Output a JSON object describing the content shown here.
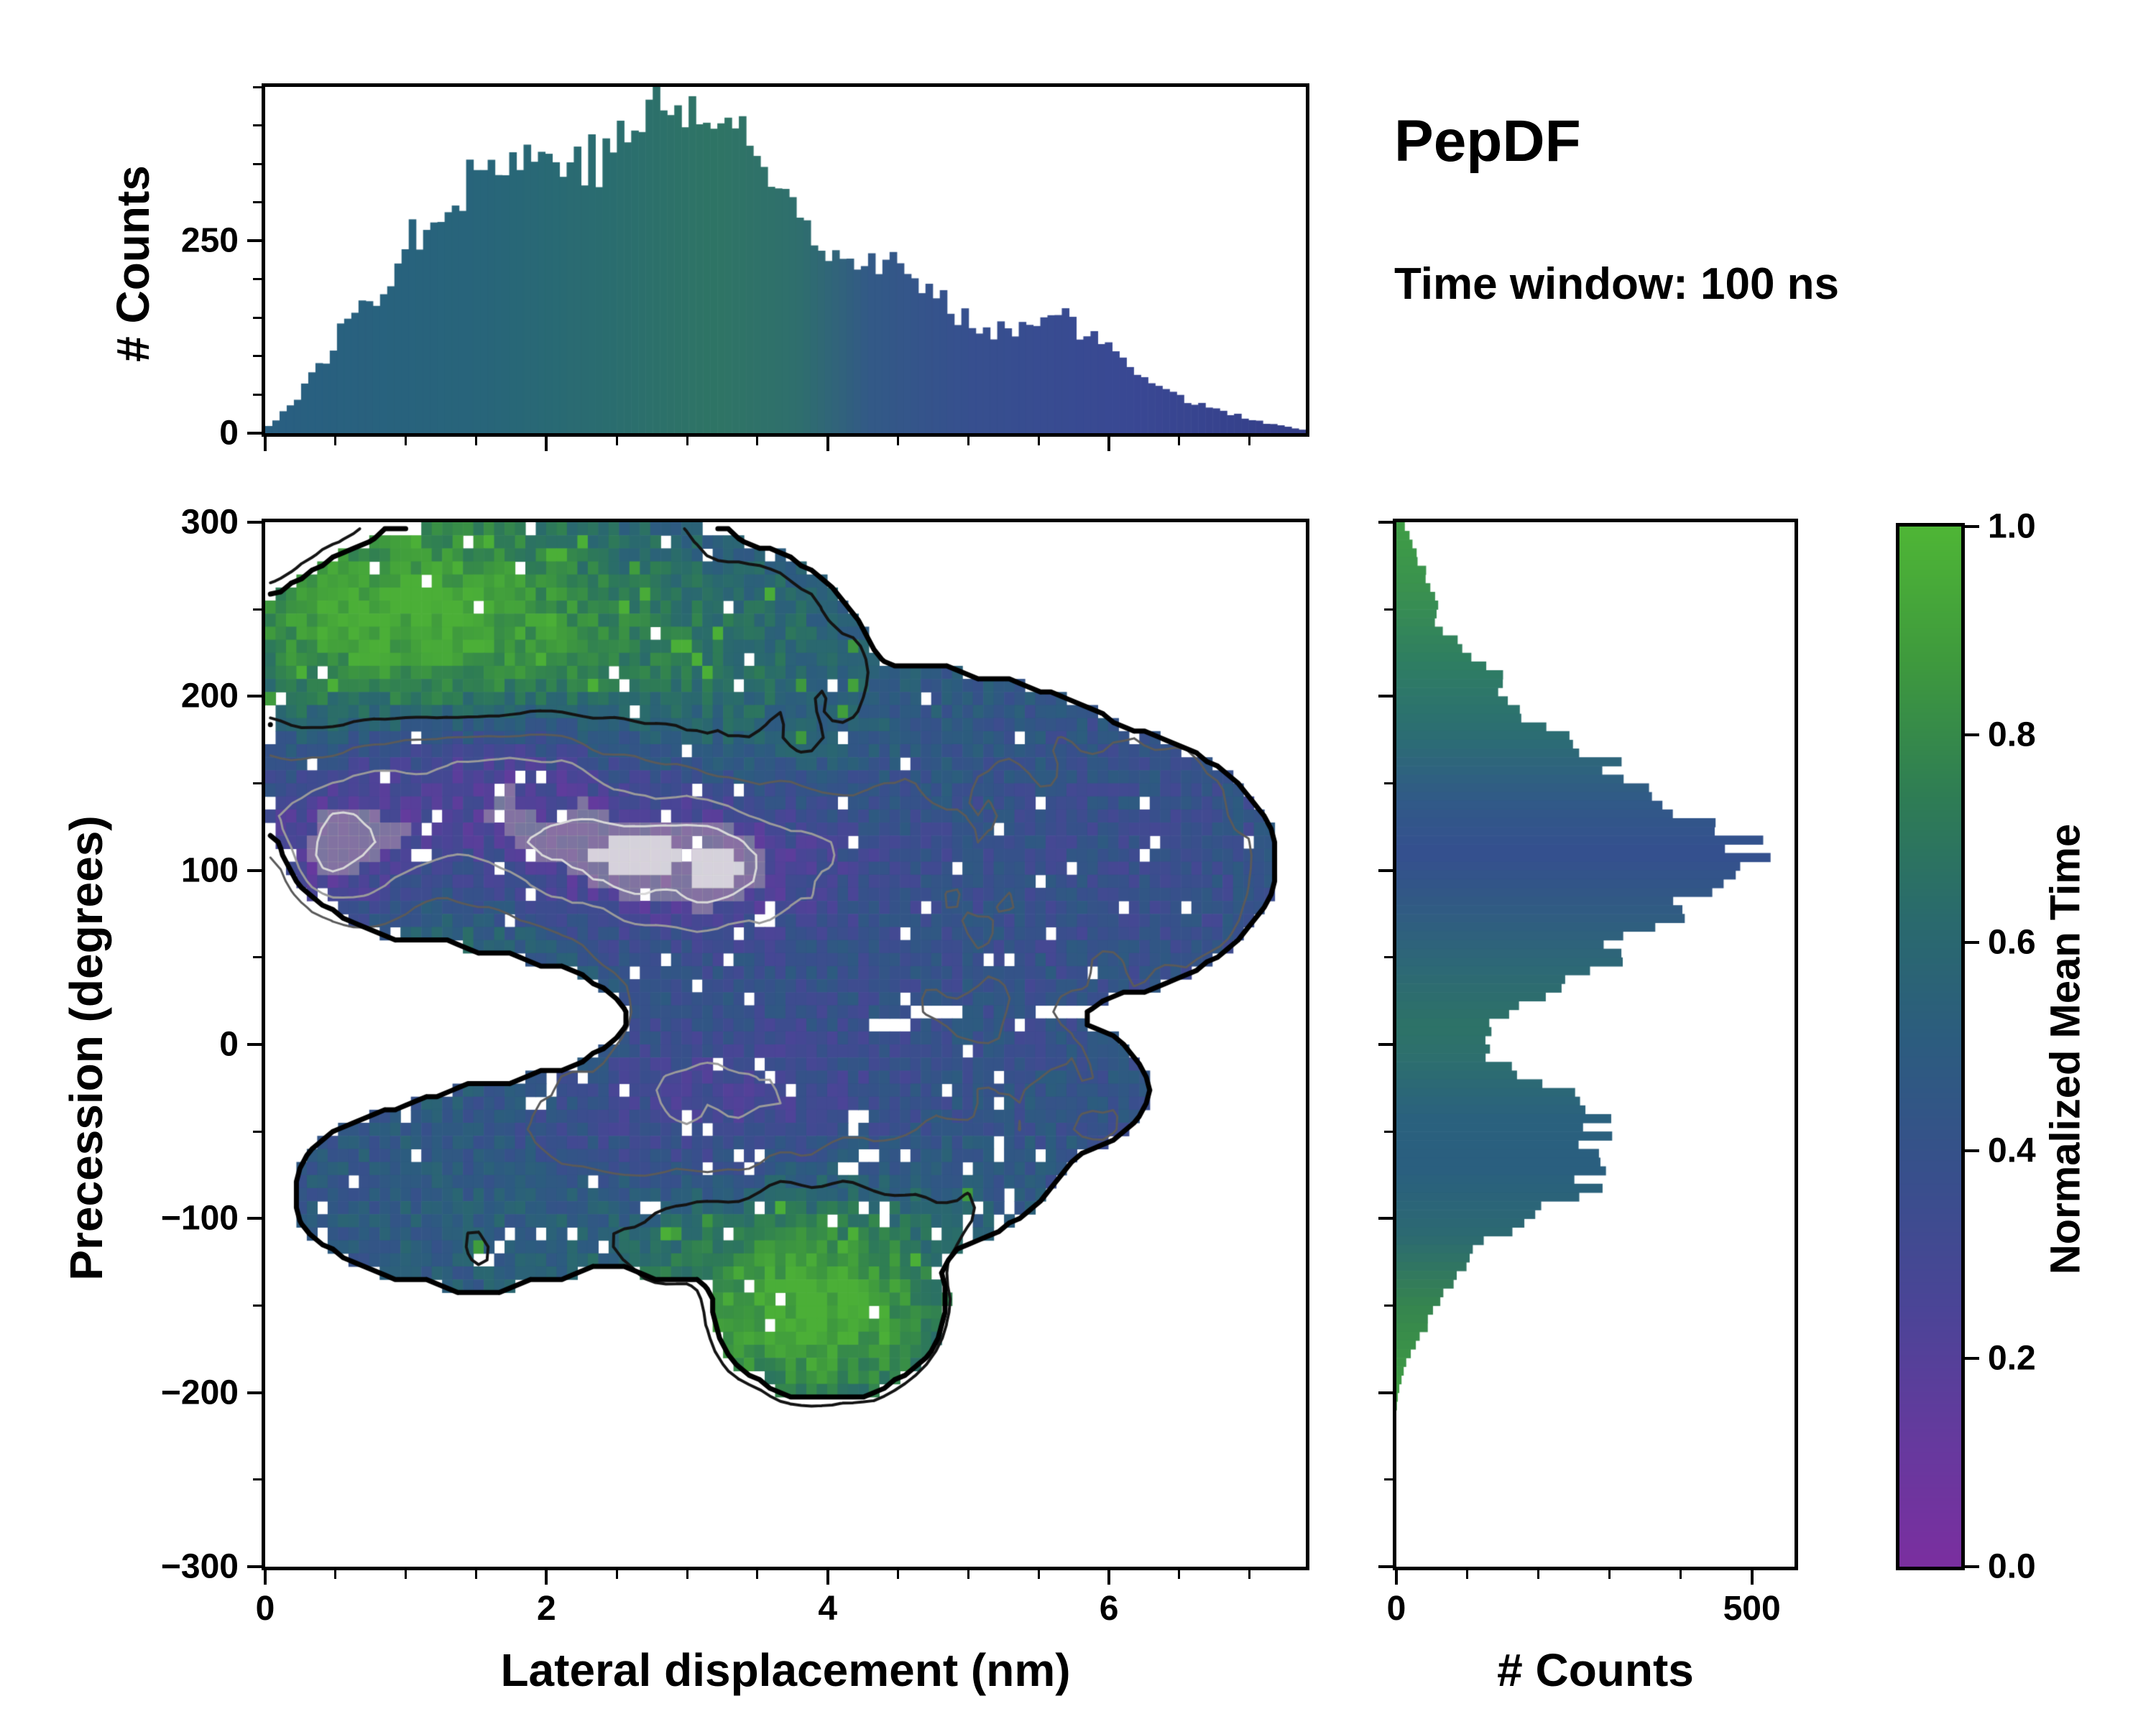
{
  "chart_data": {
    "type": "heatmap",
    "title": "PepDF",
    "subtitle": "Time window: 100 ns",
    "main": {
      "xlabel": "Lateral displacement (nm)",
      "ylabel": "Precession (degrees)",
      "xlim": [
        0,
        7.4
      ],
      "ylim": [
        -300,
        300
      ],
      "x_tick_values": [
        0,
        2,
        4,
        6
      ],
      "x_tick_labels": [
        "0",
        "2",
        "4",
        "6"
      ],
      "x_minor_step": 0.5,
      "y_tick_values": [
        -300,
        -200,
        -100,
        0,
        100,
        200,
        300
      ],
      "y_tick_labels": [
        "−300",
        "−200",
        "−100",
        "0",
        "100",
        "200",
        "300"
      ],
      "y_minor_step": 50
    },
    "heatmap": {
      "nx": 100,
      "ny": 80,
      "seed": 1234,
      "base": 0.45,
      "noise_amp": 0.1,
      "hole_fraction": 0.035,
      "blobs": [
        [
          0.8,
          250,
          1.0,
          60,
          0.38
        ],
        [
          2.4,
          220,
          1.5,
          55,
          0.25
        ],
        [
          1.0,
          35,
          0.7,
          35,
          0.3
        ],
        [
          3.9,
          -150,
          0.8,
          50,
          0.5
        ],
        [
          1.6,
          162,
          0.8,
          30,
          -0.35
        ],
        [
          2.8,
          105,
          0.9,
          30,
          -0.33
        ],
        [
          0.45,
          105,
          0.5,
          50,
          -0.28
        ],
        [
          3.3,
          -45,
          0.9,
          40,
          -0.2
        ],
        [
          5.9,
          95,
          1.6,
          90,
          -0.07
        ],
        [
          2.2,
          -115,
          1.2,
          40,
          0.08
        ]
      ],
      "mask_add": [
        [
          2.1,
          225,
          2.2,
          80
        ],
        [
          1.1,
          150,
          1.1,
          90
        ],
        [
          3.4,
          150,
          3.0,
          75
        ],
        [
          5.3,
          105,
          1.9,
          85
        ],
        [
          3.2,
          55,
          1.8,
          55
        ],
        [
          3.4,
          -60,
          2.3,
          75
        ],
        [
          1.5,
          -85,
          1.3,
          55
        ],
        [
          4.0,
          -145,
          0.85,
          60
        ],
        [
          5.2,
          -25,
          1.1,
          45
        ]
      ],
      "mask_sub": [
        [
          0.7,
          15,
          1.9,
          42
        ]
      ],
      "contour_levels": [
        [
          0.2,
          "#d8d8d8",
          3
        ],
        [
          0.3,
          "#9a9a9a",
          3
        ],
        [
          0.42,
          "#5a5a5a",
          3
        ],
        [
          0.56,
          "#141414",
          4
        ]
      ],
      "outline_color": "#000000",
      "outline_width": 7
    },
    "colormap": {
      "label": "Normalized Mean Time",
      "tick_values": [
        0,
        0.2,
        0.4,
        0.6,
        0.8,
        1.0
      ],
      "tick_labels": [
        "0.0",
        "0.2",
        "0.4",
        "0.6",
        "0.8",
        "1.0"
      ],
      "stops": [
        [
          0.0,
          "#7b2fa0"
        ],
        [
          0.12,
          "#663a9e"
        ],
        [
          0.25,
          "#4b4597"
        ],
        [
          0.38,
          "#38508c"
        ],
        [
          0.5,
          "#2d5c80"
        ],
        [
          0.62,
          "#2a6a6e"
        ],
        [
          0.74,
          "#2f7d55"
        ],
        [
          0.87,
          "#3f9a3e"
        ],
        [
          1.0,
          "#4fb636"
        ]
      ]
    },
    "top_hist": {
      "ylabel": "# Counts",
      "ylim": [
        0,
        450
      ],
      "y_tick_values": [
        0,
        250
      ],
      "y_tick_labels": [
        "0",
        "250"
      ],
      "y_minor_step": 50,
      "bins": 145,
      "points": [
        [
          0,
          5
        ],
        [
          0.2,
          40
        ],
        [
          0.4,
          90
        ],
        [
          0.6,
          150
        ],
        [
          0.8,
          185
        ],
        [
          1.0,
          240
        ],
        [
          1.2,
          290
        ],
        [
          1.5,
          340
        ],
        [
          1.8,
          360
        ],
        [
          2.0,
          355
        ],
        [
          2.2,
          370
        ],
        [
          2.4,
          345
        ],
        [
          2.6,
          400
        ],
        [
          2.8,
          430
        ],
        [
          3.0,
          415
        ],
        [
          3.2,
          410
        ],
        [
          3.4,
          385
        ],
        [
          3.6,
          330
        ],
        [
          3.8,
          290
        ],
        [
          4.0,
          250
        ],
        [
          4.2,
          225
        ],
        [
          4.4,
          230
        ],
        [
          4.6,
          200
        ],
        [
          4.8,
          170
        ],
        [
          5.0,
          150
        ],
        [
          5.2,
          135
        ],
        [
          5.4,
          140
        ],
        [
          5.6,
          170
        ],
        [
          5.8,
          130
        ],
        [
          6.0,
          110
        ],
        [
          6.2,
          85
        ],
        [
          6.4,
          55
        ],
        [
          6.6,
          40
        ],
        [
          6.8,
          30
        ],
        [
          7.0,
          18
        ],
        [
          7.2,
          10
        ],
        [
          7.4,
          4
        ]
      ],
      "colors": [
        [
          0,
          "#2a5f82"
        ],
        [
          1.5,
          "#28657b"
        ],
        [
          2.5,
          "#2b6e6f"
        ],
        [
          3.2,
          "#2f7565"
        ],
        [
          3.8,
          "#2f6f6e"
        ],
        [
          4.3,
          "#335a87"
        ],
        [
          5.0,
          "#37508f"
        ],
        [
          6.2,
          "#3a4894"
        ],
        [
          7.4,
          "#343e88"
        ]
      ]
    },
    "right_hist": {
      "xlabel": "# Counts",
      "xlim": [
        0,
        560
      ],
      "x_tick_values": [
        0,
        500
      ],
      "x_tick_labels": [
        "0",
        "500"
      ],
      "x_minor_step": 100,
      "bins": 120,
      "points": [
        [
          -300,
          0
        ],
        [
          -210,
          0
        ],
        [
          -200,
          3
        ],
        [
          -190,
          8
        ],
        [
          -180,
          15
        ],
        [
          -170,
          30
        ],
        [
          -160,
          45
        ],
        [
          -150,
          60
        ],
        [
          -140,
          70
        ],
        [
          -130,
          90
        ],
        [
          -120,
          110
        ],
        [
          -110,
          140
        ],
        [
          -100,
          180
        ],
        [
          -90,
          230
        ],
        [
          -80,
          275
        ],
        [
          -70,
          285
        ],
        [
          -60,
          280
        ],
        [
          -50,
          290
        ],
        [
          -40,
          280
        ],
        [
          -30,
          260
        ],
        [
          -20,
          200
        ],
        [
          -10,
          140
        ],
        [
          0,
          120
        ],
        [
          10,
          130
        ],
        [
          20,
          160
        ],
        [
          30,
          210
        ],
        [
          40,
          260
        ],
        [
          50,
          300
        ],
        [
          60,
          330
        ],
        [
          70,
          380
        ],
        [
          80,
          400
        ],
        [
          90,
          430
        ],
        [
          100,
          480
        ],
        [
          110,
          500
        ],
        [
          120,
          470
        ],
        [
          130,
          420
        ],
        [
          140,
          380
        ],
        [
          150,
          330
        ],
        [
          160,
          300
        ],
        [
          170,
          260
        ],
        [
          180,
          210
        ],
        [
          190,
          170
        ],
        [
          200,
          150
        ],
        [
          210,
          150
        ],
        [
          220,
          120
        ],
        [
          230,
          90
        ],
        [
          240,
          60
        ],
        [
          260,
          55
        ],
        [
          280,
          30
        ],
        [
          300,
          10
        ]
      ],
      "colors": [
        [
          -300,
          "#44a83e"
        ],
        [
          -200,
          "#3f9e42"
        ],
        [
          -150,
          "#36854f"
        ],
        [
          -110,
          "#2d6a72"
        ],
        [
          -70,
          "#2a5f80"
        ],
        [
          -40,
          "#2b627e"
        ],
        [
          -10,
          "#2d6f6f"
        ],
        [
          10,
          "#2e7367"
        ],
        [
          40,
          "#2d6a74"
        ],
        [
          80,
          "#315a84"
        ],
        [
          110,
          "#35508f"
        ],
        [
          140,
          "#315a88"
        ],
        [
          180,
          "#2c6f72"
        ],
        [
          220,
          "#2f7e62"
        ],
        [
          260,
          "#3a9150"
        ],
        [
          300,
          "#3f9e45"
        ]
      ]
    }
  }
}
